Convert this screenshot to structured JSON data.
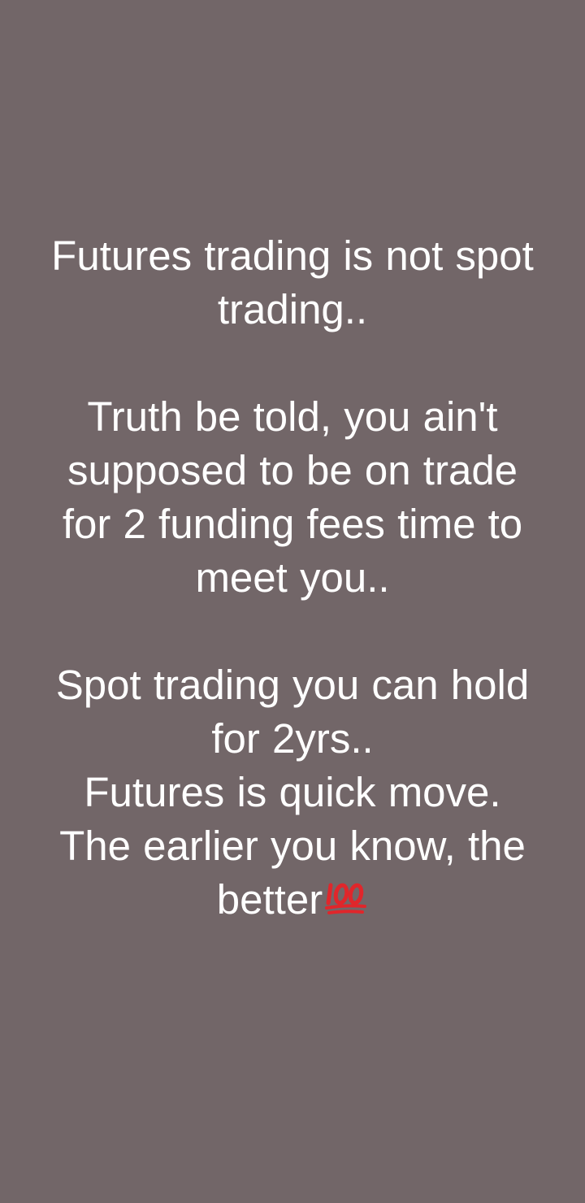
{
  "status": {
    "p1_line1": "Futures trading is not spot",
    "p1_line2": "trading..",
    "p2_line1": "Truth be told, you ain't",
    "p2_line2": "supposed to be on trade",
    "p2_line3": "for 2 funding fees time to",
    "p2_line4": "meet you..",
    "p3_line1": "Spot trading you can hold",
    "p3_line2": "for 2yrs..",
    "p3_line3": "Futures is quick move.",
    "p3_line4": "The earlier you know, the",
    "p3_line5": "better",
    "emoji_icon": "hundred-points-icon",
    "emoji_color": "#e0262b"
  },
  "background_color": "#726668",
  "text_color": "#ffffff"
}
